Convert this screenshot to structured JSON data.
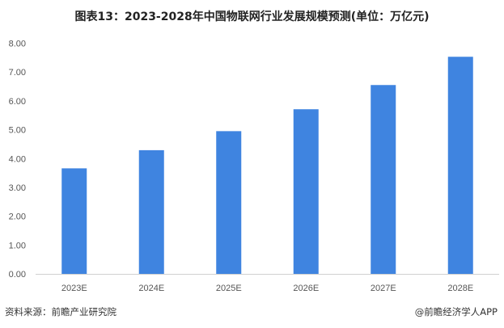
{
  "chart_data": {
    "type": "bar",
    "title": "图表13：2023-2028年中国物联网行业发展规模预测(单位：万亿元)",
    "categories": [
      "2023E",
      "2024E",
      "2025E",
      "2026E",
      "2027E",
      "2028E"
    ],
    "values": [
      3.66,
      4.29,
      4.95,
      5.71,
      6.55,
      7.53
    ],
    "ylim": [
      0,
      8
    ],
    "yticks": [
      "0.00",
      "1.00",
      "2.00",
      "3.00",
      "4.00",
      "5.00",
      "6.00",
      "7.00",
      "8.00"
    ],
    "grid": false,
    "bar_color": "#3f84e0"
  },
  "footer": {
    "source": "资料来源：前瞻产业研究院",
    "brand": "@前瞻经济学人APP"
  }
}
